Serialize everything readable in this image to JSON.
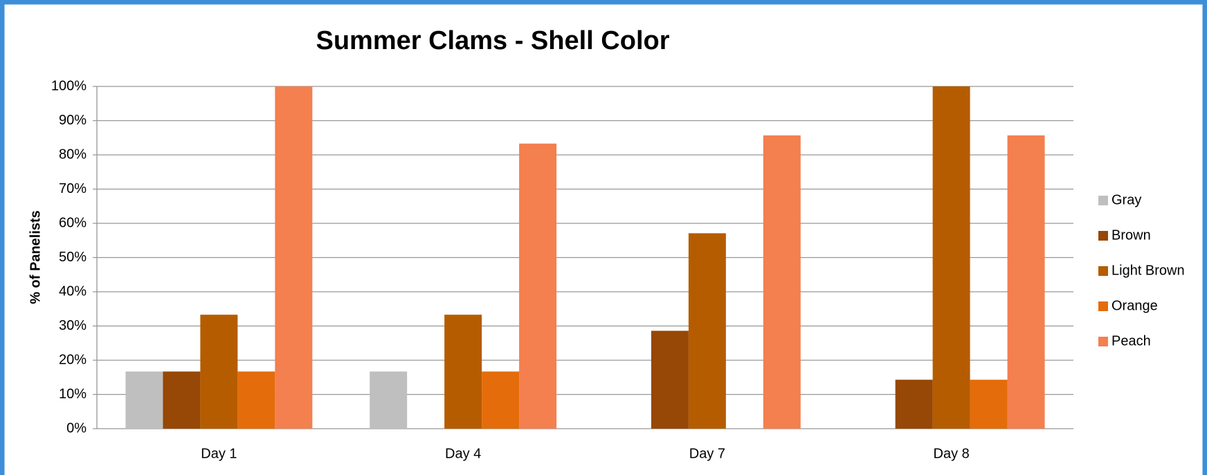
{
  "chart_data": {
    "type": "bar",
    "title": "Summer Clams - Shell Color",
    "y_label": "% of Panelists",
    "categories": [
      "Day 1",
      "Day 4",
      "Day 7",
      "Day 8"
    ],
    "series": [
      {
        "name": "Gray",
        "color": "#bfbfbf",
        "values": [
          16.7,
          16.7,
          0,
          0
        ]
      },
      {
        "name": "Brown",
        "color": "#974706",
        "values": [
          16.7,
          0,
          28.6,
          14.3
        ]
      },
      {
        "name": "Light Brown",
        "color": "#b65c00",
        "values": [
          33.3,
          33.3,
          57.1,
          100
        ]
      },
      {
        "name": "Orange",
        "color": "#e46c0a",
        "values": [
          16.7,
          16.7,
          0,
          14.3
        ]
      },
      {
        "name": "Peach",
        "color": "#f47f4f",
        "values": [
          100,
          83.3,
          85.7,
          85.7
        ]
      }
    ],
    "ylim": [
      0,
      100
    ],
    "yticks": [
      {
        "value": 0,
        "label": "0%"
      },
      {
        "value": 10,
        "label": "10%"
      },
      {
        "value": 20,
        "label": "20%"
      },
      {
        "value": 30,
        "label": "30%"
      },
      {
        "value": 40,
        "label": "40%"
      },
      {
        "value": 50,
        "label": "50%"
      },
      {
        "value": 60,
        "label": "60%"
      },
      {
        "value": 70,
        "label": "70%"
      },
      {
        "value": 80,
        "label": "80%"
      },
      {
        "value": 90,
        "label": "90%"
      },
      {
        "value": 100,
        "label": "100%"
      }
    ],
    "grid": true,
    "legend": "right"
  }
}
